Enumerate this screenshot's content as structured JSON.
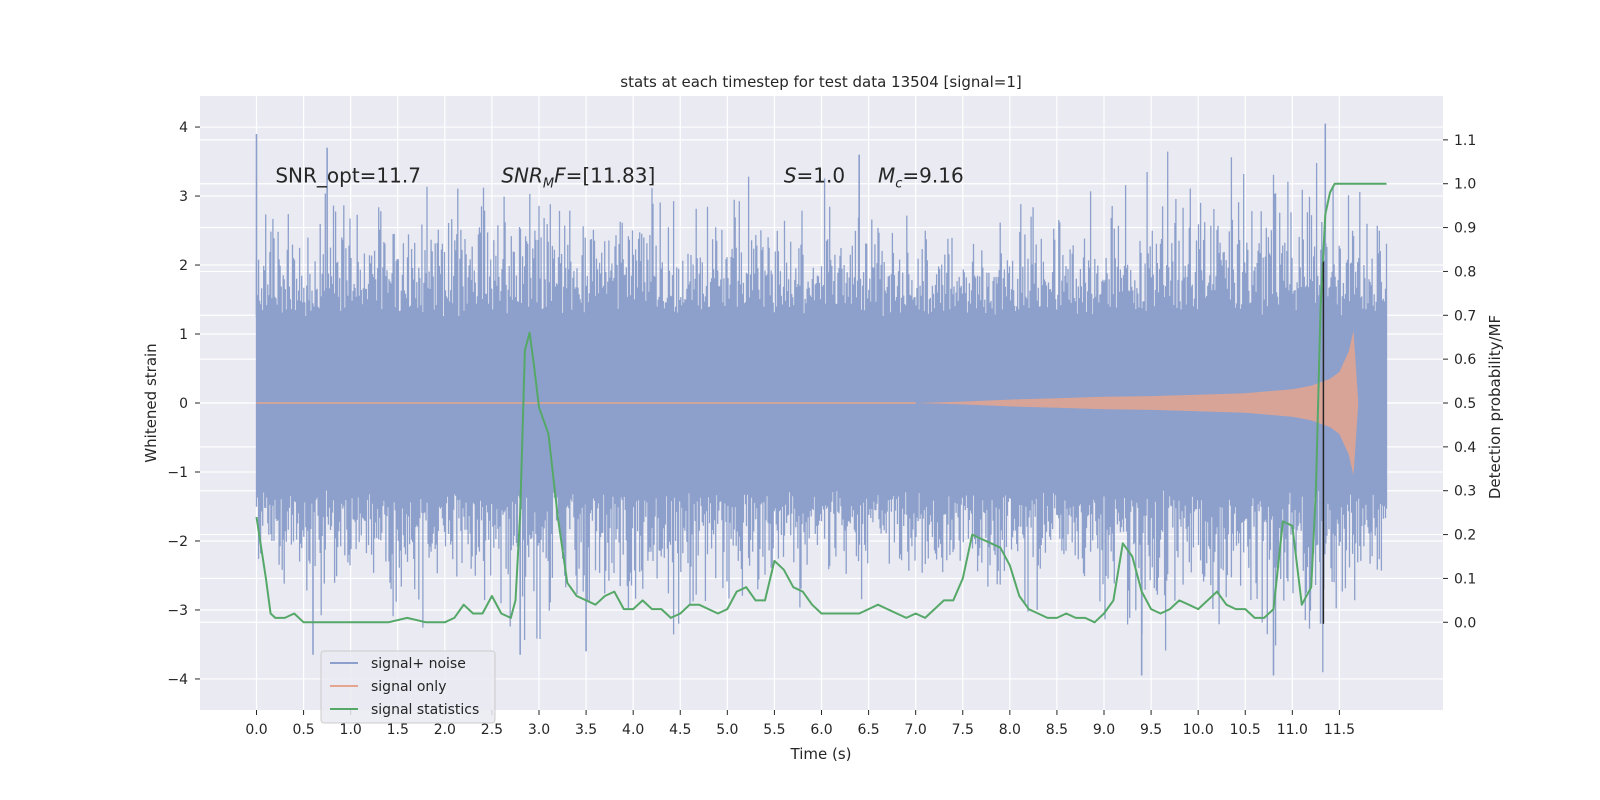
{
  "chart_data": {
    "type": "line",
    "title": "stats at each timestep for test data 13504 [signal=1]",
    "xlabel": "Time (s)",
    "ylabel": "Whitened strain",
    "ylabel_right": "Detection probability/MF",
    "xlim": [
      -0.6,
      12.6
    ],
    "ylim": [
      -4.45,
      4.45
    ],
    "ylim_right": [
      -0.2,
      1.2
    ],
    "xticks": [
      0.0,
      0.5,
      1.0,
      1.5,
      2.0,
      2.5,
      3.0,
      3.5,
      4.0,
      4.5,
      5.0,
      5.5,
      6.0,
      6.5,
      7.0,
      7.5,
      8.0,
      8.5,
      9.0,
      9.5,
      10.0,
      10.5,
      11.0,
      11.5
    ],
    "xtick_labels": [
      "0.0",
      "0.5",
      "1.0",
      "1.5",
      "2.0",
      "2.5",
      "3.0",
      "3.5",
      "4.0",
      "4.5",
      "5.0",
      "5.5",
      "6.0",
      "6.5",
      "7.0",
      "7.5",
      "8.0",
      "8.5",
      "9.0",
      "9.5",
      "10.0",
      "10.5",
      "11.0",
      "11.5"
    ],
    "yticks": [
      -4,
      -3,
      -2,
      -1,
      0,
      1,
      2,
      3,
      4
    ],
    "ytick_labels": [
      "−4",
      "−3",
      "−2",
      "−1",
      "0",
      "1",
      "2",
      "3",
      "4"
    ],
    "yticks_right": [
      0.0,
      0.1,
      0.2,
      0.3,
      0.4,
      0.5,
      0.6,
      0.7,
      0.8,
      0.9,
      1.0,
      1.1
    ],
    "ytick_labels_right": [
      "0.0",
      "0.1",
      "0.2",
      "0.3",
      "0.4",
      "0.5",
      "0.6",
      "0.7",
      "0.8",
      "0.9",
      "1.0",
      "1.1"
    ],
    "grid": true,
    "legend_position": "lower-left",
    "colors": {
      "noise": "#8da0cb",
      "signal": "#e5a58e",
      "stats": "#55a868",
      "marker": "#262626",
      "background": "#eaeaf2"
    },
    "series": [
      {
        "name": "signal+ noise",
        "style": "dense-noise",
        "x_range": [
          0.0,
          12.0
        ],
        "core_amplitude": 1.25,
        "peak_envelope": [
          [
            0.0,
            2.0
          ],
          [
            2.9,
            2.4
          ],
          [
            7.0,
            2.0
          ],
          [
            11.3,
            2.6
          ],
          [
            12.0,
            2.0
          ]
        ],
        "spikes": [
          [
            0.0,
            3.9
          ],
          [
            0.75,
            3.7
          ],
          [
            0.6,
            -3.65
          ],
          [
            2.8,
            -3.65
          ],
          [
            3.5,
            -3.6
          ],
          [
            6.4,
            3.6
          ],
          [
            9.4,
            -3.95
          ],
          [
            10.8,
            -3.95
          ],
          [
            11.3,
            -3.2
          ],
          [
            11.35,
            4.05
          ]
        ]
      },
      {
        "name": "signal only",
        "style": "chirp",
        "x": [
          0.0,
          7.0,
          7.5,
          8.0,
          8.5,
          9.0,
          9.5,
          10.0,
          10.5,
          11.0,
          11.2,
          11.4,
          11.5,
          11.6,
          11.65,
          11.7
        ],
        "envelope": [
          0.0,
          0.0,
          0.02,
          0.05,
          0.07,
          0.09,
          0.1,
          0.12,
          0.14,
          0.2,
          0.25,
          0.35,
          0.45,
          0.75,
          1.05,
          0.0
        ]
      },
      {
        "name": "signal statistics",
        "axis": "right",
        "x": [
          0.0,
          0.1,
          0.15,
          0.2,
          0.3,
          0.4,
          0.5,
          0.6,
          0.8,
          1.0,
          1.2,
          1.4,
          1.6,
          1.8,
          2.0,
          2.1,
          2.2,
          2.3,
          2.4,
          2.5,
          2.6,
          2.7,
          2.75,
          2.8,
          2.85,
          2.9,
          2.95,
          3.0,
          3.1,
          3.2,
          3.3,
          3.4,
          3.5,
          3.6,
          3.7,
          3.8,
          3.9,
          4.0,
          4.1,
          4.2,
          4.3,
          4.4,
          4.5,
          4.6,
          4.7,
          4.8,
          4.9,
          5.0,
          5.1,
          5.2,
          5.3,
          5.4,
          5.5,
          5.6,
          5.7,
          5.8,
          5.9,
          6.0,
          6.2,
          6.4,
          6.5,
          6.6,
          6.7,
          6.8,
          6.9,
          7.0,
          7.1,
          7.2,
          7.3,
          7.4,
          7.5,
          7.6,
          7.7,
          7.8,
          7.9,
          8.0,
          8.1,
          8.2,
          8.3,
          8.4,
          8.5,
          8.6,
          8.7,
          8.8,
          8.9,
          9.0,
          9.1,
          9.2,
          9.3,
          9.4,
          9.5,
          9.6,
          9.7,
          9.8,
          9.9,
          10.0,
          10.1,
          10.2,
          10.3,
          10.4,
          10.5,
          10.6,
          10.7,
          10.8,
          10.9,
          11.0,
          11.1,
          11.2,
          11.25,
          11.3,
          11.35,
          11.4,
          11.45,
          11.5,
          11.6,
          11.7,
          11.8,
          11.9,
          12.0
        ],
        "values": [
          0.24,
          0.1,
          0.02,
          0.01,
          0.01,
          0.02,
          0.0,
          0.0,
          0.0,
          0.0,
          0.0,
          0.0,
          0.01,
          0.0,
          0.0,
          0.01,
          0.04,
          0.02,
          0.02,
          0.06,
          0.02,
          0.01,
          0.05,
          0.25,
          0.62,
          0.66,
          0.58,
          0.49,
          0.43,
          0.24,
          0.09,
          0.06,
          0.05,
          0.04,
          0.06,
          0.07,
          0.03,
          0.03,
          0.05,
          0.03,
          0.03,
          0.01,
          0.02,
          0.04,
          0.04,
          0.03,
          0.02,
          0.03,
          0.07,
          0.08,
          0.05,
          0.05,
          0.14,
          0.12,
          0.08,
          0.07,
          0.04,
          0.02,
          0.02,
          0.02,
          0.03,
          0.04,
          0.03,
          0.02,
          0.01,
          0.02,
          0.01,
          0.03,
          0.05,
          0.05,
          0.1,
          0.2,
          0.19,
          0.18,
          0.17,
          0.13,
          0.06,
          0.03,
          0.02,
          0.01,
          0.01,
          0.02,
          0.01,
          0.01,
          0.0,
          0.02,
          0.05,
          0.18,
          0.15,
          0.07,
          0.03,
          0.02,
          0.03,
          0.05,
          0.04,
          0.03,
          0.05,
          0.07,
          0.04,
          0.03,
          0.03,
          0.01,
          0.01,
          0.03,
          0.23,
          0.22,
          0.04,
          0.08,
          0.3,
          0.72,
          0.93,
          0.98,
          1.0,
          1.0,
          1.0,
          1.0,
          1.0,
          1.0,
          1.0
        ]
      }
    ],
    "vertical_line_x": 11.33,
    "annotations": [
      {
        "id": "snr-opt",
        "text": "SNR_opt=11.7",
        "x": 0.2,
        "y": 3.3
      },
      {
        "id": "snr-mf",
        "text": "SNR_MF=[11.83]",
        "x": 2.6,
        "y": 3.3
      },
      {
        "id": "s-value",
        "text": "S=1.0",
        "x": 5.6,
        "y": 3.3
      },
      {
        "id": "mc-value",
        "text": "M_c=9.16",
        "x": 6.6,
        "y": 3.3
      }
    ]
  }
}
